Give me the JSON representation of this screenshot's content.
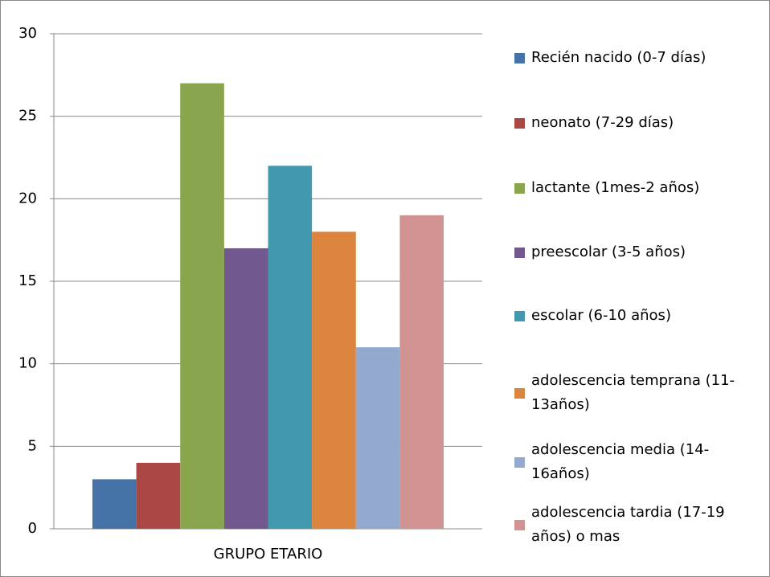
{
  "chart_data": {
    "type": "bar",
    "categories": [
      "GRUPO ETARIO"
    ],
    "series": [
      {
        "name": "Recién nacido (0-7 días)",
        "color": "#4572a7",
        "values": [
          3
        ]
      },
      {
        "name": "neonato (7-29 días)",
        "color": "#aa4643",
        "values": [
          4
        ]
      },
      {
        "name": " lactante (1mes-2 años)",
        "color": "#89a54e",
        "values": [
          27
        ]
      },
      {
        "name": "preescolar (3-5 años)",
        "color": "#71588f",
        "values": [
          17
        ]
      },
      {
        "name": "escolar (6-10 años)",
        "color": "#4198af",
        "values": [
          22
        ]
      },
      {
        "name": "adolescencia temprana (11-13años)",
        "color": "#db843d",
        "values": [
          18
        ]
      },
      {
        "name": "adolescencia media (14-16años)",
        "color": "#93a9cf",
        "values": [
          11
        ]
      },
      {
        "name": "adolescencia tardia (17-19 años) o mas",
        "color": "#d19392",
        "values": [
          19
        ]
      }
    ],
    "ylim": [
      0,
      30
    ],
    "yticks": [
      0,
      5,
      10,
      15,
      20,
      25,
      30
    ],
    "grid": true,
    "legend": "right"
  }
}
